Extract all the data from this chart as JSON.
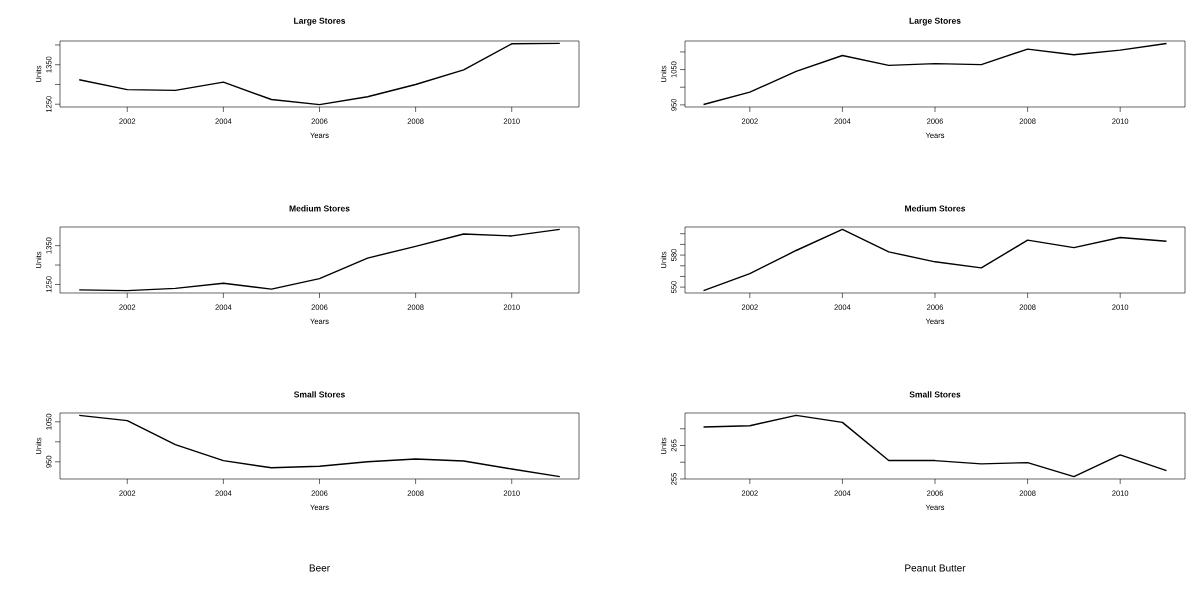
{
  "chart_data": [
    {
      "type": "line",
      "title": "Large Stores",
      "xlabel": "Years",
      "ylabel": "Units",
      "x": [
        2001,
        2002,
        2003,
        2004,
        2005,
        2006,
        2007,
        2008,
        2009,
        2010,
        2011
      ],
      "series": [
        {
          "color": "#000000",
          "values": [
            1312,
            1287,
            1285,
            1306,
            1262,
            1249,
            1269,
            1300,
            1337,
            1403,
            1404
          ]
        }
      ],
      "xlim": [
        2000.6,
        2011.4
      ],
      "ylim": [
        1243,
        1410
      ],
      "xticks": [
        2002,
        2004,
        2006,
        2008,
        2010
      ],
      "yticks": [
        1250,
        {
          "value": 1300,
          "label": null
        },
        1350,
        {
          "value": 1400,
          "label": null
        }
      ]
    },
    {
      "type": "line",
      "title": "Large Stores",
      "xlabel": "Years",
      "ylabel": "Units",
      "x": [
        2001,
        2002,
        2003,
        2004,
        2005,
        2006,
        2007,
        2008,
        2009,
        2010,
        2011
      ],
      "series": [
        {
          "color": "#000000",
          "values": [
            951,
            986,
            1045,
            1090,
            1062,
            1067,
            1064,
            1108,
            1092,
            1105,
            1124
          ]
        }
      ],
      "xlim": [
        2000.6,
        2011.4
      ],
      "ylim": [
        944,
        1131
      ],
      "xticks": [
        2002,
        2004,
        2006,
        2008,
        2010
      ],
      "yticks": [
        950,
        {
          "value": 1000,
          "label": null
        },
        1050,
        {
          "value": 1100,
          "label": null
        }
      ]
    },
    {
      "type": "line",
      "title": "Medium Stores",
      "xlabel": "Years",
      "ylabel": "Units",
      "x": [
        2001,
        2002,
        2003,
        2004,
        2005,
        2006,
        2007,
        2008,
        2009,
        2010,
        2011
      ],
      "series": [
        {
          "color": "#000000",
          "values": [
            1236,
            1234,
            1240,
            1253,
            1238,
            1265,
            1318,
            1348,
            1380,
            1375,
            1392
          ]
        }
      ],
      "xlim": [
        2000.6,
        2011.4
      ],
      "ylim": [
        1228,
        1398
      ],
      "xticks": [
        2002,
        2004,
        2006,
        2008,
        2010
      ],
      "yticks": [
        1250,
        {
          "value": 1300,
          "label": null
        },
        1350
      ]
    },
    {
      "type": "line",
      "title": "Medium Stores",
      "xlabel": "Years",
      "ylabel": "Units",
      "x": [
        2001,
        2002,
        2003,
        2004,
        2005,
        2006,
        2007,
        2008,
        2009,
        2010,
        2011
      ],
      "series": [
        {
          "color": "#000000",
          "values": [
            546.8,
            562.6,
            584.3,
            604,
            583,
            573.7,
            568,
            594,
            587,
            596.5,
            593
          ]
        }
      ],
      "xlim": [
        2000.6,
        2011.4
      ],
      "ylim": [
        544.5,
        606.3
      ],
      "xticks": [
        2002,
        2004,
        2006,
        2008,
        2010
      ],
      "yticks": [
        550,
        {
          "value": 560,
          "label": null
        },
        {
          "value": 570,
          "label": null
        },
        580,
        {
          "value": 590,
          "label": null
        },
        {
          "value": 600,
          "label": null
        }
      ]
    },
    {
      "type": "line",
      "title": "Small Stores",
      "xlabel": "Years",
      "ylabel": "Units",
      "x": [
        2001,
        2002,
        2003,
        2004,
        2005,
        2006,
        2007,
        2008,
        2009,
        2010,
        2011
      ],
      "series": [
        {
          "color": "#000000",
          "values": [
            1066,
            1053,
            993,
            953,
            935,
            939,
            950,
            957,
            952,
            932,
            913
          ]
        }
      ],
      "xlim": [
        2000.6,
        2011.4
      ],
      "ylim": [
        907,
        1072
      ],
      "xticks": [
        2002,
        2004,
        2006,
        2008,
        2010
      ],
      "yticks": [
        950,
        {
          "value": 1000,
          "label": null
        },
        1050
      ],
      "annotations": [
        "Beer"
      ]
    },
    {
      "type": "line",
      "title": "Small Stores",
      "xlabel": "Years",
      "ylabel": "Units",
      "x": [
        2001,
        2002,
        2003,
        2004,
        2005,
        2006,
        2007,
        2008,
        2009,
        2010,
        2011
      ],
      "series": [
        {
          "color": "#000000",
          "values": [
            270.5,
            270.9,
            274,
            271.9,
            260.5,
            260.5,
            259.5,
            259.9,
            255.7,
            262.2,
            257.5
          ]
        }
      ],
      "xlim": [
        2000.6,
        2011.4
      ],
      "ylim": [
        255.0,
        274.7
      ],
      "xticks": [
        2002,
        2004,
        2006,
        2008,
        2010
      ],
      "yticks": [
        255,
        {
          "value": 260,
          "label": null
        },
        265,
        {
          "value": 270,
          "label": null
        }
      ],
      "annotations": [
        "Peanut Butter"
      ]
    }
  ]
}
